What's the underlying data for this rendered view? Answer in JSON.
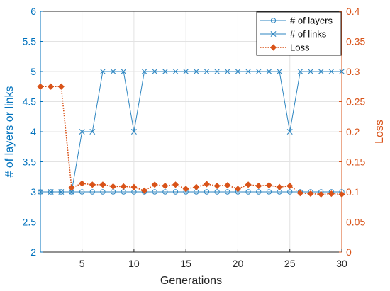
{
  "chart_data": {
    "type": "line",
    "xlabel": "Generations",
    "ylabel_left": "# of layers or links",
    "ylabel_right": "Loss",
    "xlim": [
      1,
      30
    ],
    "ylim_left": [
      2,
      6
    ],
    "ylim_right": [
      0,
      0.4
    ],
    "x_ticks": [
      5,
      10,
      15,
      20,
      25,
      30
    ],
    "y_left_ticks": [
      2,
      2.5,
      3,
      3.5,
      4,
      4.5,
      5,
      5.5,
      6
    ],
    "y_right_ticks": [
      0,
      0.05,
      0.1,
      0.15,
      0.2,
      0.25,
      0.3,
      0.35,
      0.4
    ],
    "grid": true,
    "legend_position": "top-right",
    "x": [
      1,
      2,
      3,
      4,
      5,
      6,
      7,
      8,
      9,
      10,
      11,
      12,
      13,
      14,
      15,
      16,
      17,
      18,
      19,
      20,
      21,
      22,
      23,
      24,
      25,
      26,
      27,
      28,
      29,
      30
    ],
    "series": [
      {
        "name": "# of layers",
        "axis": "left",
        "marker": "circle",
        "line_style": "solid",
        "color": "#2E86C1",
        "values": [
          3,
          3,
          3,
          3,
          3,
          3,
          3,
          3,
          3,
          3,
          3,
          3,
          3,
          3,
          3,
          3,
          3,
          3,
          3,
          3,
          3,
          3,
          3,
          3,
          3,
          3,
          3,
          3,
          3,
          3
        ]
      },
      {
        "name": "# of links",
        "axis": "left",
        "marker": "x",
        "line_style": "solid",
        "color": "#2E86C1",
        "values": [
          3,
          3,
          3,
          3,
          4,
          4,
          5,
          5,
          5,
          4,
          5,
          5,
          5,
          5,
          5,
          5,
          5,
          5,
          5,
          5,
          5,
          5,
          5,
          5,
          4,
          5,
          5,
          5,
          5,
          5
        ]
      },
      {
        "name": "Loss",
        "axis": "right",
        "marker": "diamond",
        "line_style": "dotted",
        "color": "#D95319",
        "values": [
          0.275,
          0.275,
          0.275,
          0.107,
          0.114,
          0.112,
          0.112,
          0.109,
          0.109,
          0.108,
          0.102,
          0.112,
          0.11,
          0.112,
          0.105,
          0.108,
          0.113,
          0.11,
          0.111,
          0.105,
          0.112,
          0.11,
          0.111,
          0.108,
          0.11,
          0.098,
          0.097,
          0.096,
          0.097,
          0.096
        ]
      }
    ]
  }
}
